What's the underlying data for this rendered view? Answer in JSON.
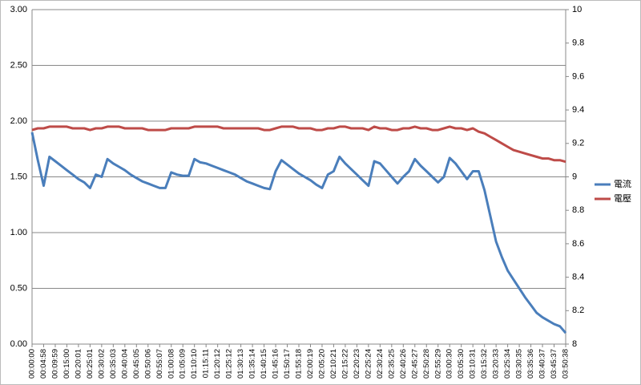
{
  "chart_data": {
    "type": "line",
    "categories": [
      "00:00:00",
      null,
      "00:04:58",
      null,
      "00:09:59",
      null,
      "00:15:00",
      null,
      "00:20:01",
      null,
      "00:25:01",
      null,
      "00:30:02",
      null,
      "00:35:03",
      null,
      "00:40:04",
      null,
      "00:45:05",
      null,
      "00:50:06",
      null,
      "00:55:07",
      null,
      "01:00:08",
      null,
      "01:05:09",
      null,
      "01:10:10",
      null,
      "01:15:11",
      null,
      "01:20:12",
      null,
      "01:25:12",
      null,
      "01:30:13",
      null,
      "01:35:14",
      null,
      "01:40:15",
      null,
      "01:45:16",
      null,
      "01:50:17",
      null,
      "01:55:18",
      null,
      "02:00:19",
      null,
      "02:05:20",
      null,
      "02:10:21",
      null,
      "02:15:22",
      null,
      "02:20:23",
      null,
      "02:25:24",
      null,
      "02:30:24",
      null,
      "02:35:25",
      null,
      "02:40:26",
      null,
      "02:45:27",
      null,
      "02:50:28",
      null,
      "02:55:29",
      null,
      "03:00:30",
      null,
      "03:05:30",
      null,
      "03:10:31",
      null,
      "03:15:32",
      null,
      "03:20:33",
      null,
      "03:25:34",
      null,
      "03:30:35",
      null,
      "03:35:36",
      null,
      "03:40:37",
      null,
      "03:45:37",
      null,
      "03:50:38"
    ],
    "series": [
      {
        "name": "電流",
        "color": "#4a7ebb",
        "values": [
          1.9,
          1.65,
          1.42,
          1.68,
          1.64,
          1.6,
          1.56,
          1.52,
          1.48,
          1.45,
          1.4,
          1.52,
          1.5,
          1.66,
          1.62,
          1.59,
          1.56,
          1.52,
          1.49,
          1.46,
          1.44,
          1.42,
          1.4,
          1.4,
          1.54,
          1.52,
          1.51,
          1.51,
          1.66,
          1.63,
          1.62,
          1.6,
          1.58,
          1.56,
          1.54,
          1.52,
          1.49,
          1.46,
          1.44,
          1.42,
          1.4,
          1.39,
          1.55,
          1.65,
          1.61,
          1.57,
          1.53,
          1.5,
          1.47,
          1.43,
          1.4,
          1.52,
          1.55,
          1.68,
          1.62,
          1.57,
          1.52,
          1.47,
          1.42,
          1.64,
          1.62,
          1.56,
          1.5,
          1.44,
          1.5,
          1.55,
          1.66,
          1.6,
          1.55,
          1.5,
          1.45,
          1.5,
          1.67,
          1.62,
          1.55,
          1.48,
          1.55,
          1.55,
          1.38,
          1.15,
          0.92,
          0.78,
          0.66,
          0.58,
          0.5,
          0.42,
          0.35,
          0.28,
          0.24,
          0.21,
          0.18,
          0.16,
          0.1
        ]
      },
      {
        "name": "電壓",
        "color": "#be4b48",
        "axis": "y2",
        "values": [
          9.28,
          9.29,
          9.29,
          9.3,
          9.3,
          9.3,
          9.3,
          9.29,
          9.29,
          9.29,
          9.28,
          9.29,
          9.29,
          9.3,
          9.3,
          9.3,
          9.29,
          9.29,
          9.29,
          9.29,
          9.28,
          9.28,
          9.28,
          9.28,
          9.29,
          9.29,
          9.29,
          9.29,
          9.3,
          9.3,
          9.3,
          9.3,
          9.3,
          9.29,
          9.29,
          9.29,
          9.29,
          9.29,
          9.29,
          9.29,
          9.28,
          9.28,
          9.29,
          9.3,
          9.3,
          9.3,
          9.29,
          9.29,
          9.29,
          9.28,
          9.28,
          9.29,
          9.29,
          9.3,
          9.3,
          9.29,
          9.29,
          9.29,
          9.28,
          9.3,
          9.29,
          9.29,
          9.28,
          9.28,
          9.29,
          9.29,
          9.3,
          9.29,
          9.29,
          9.28,
          9.28,
          9.29,
          9.3,
          9.29,
          9.29,
          9.28,
          9.29,
          9.27,
          9.26,
          9.24,
          9.22,
          9.2,
          9.18,
          9.16,
          9.15,
          9.14,
          9.13,
          9.12,
          9.11,
          9.11,
          9.1,
          9.1,
          9.09
        ]
      }
    ],
    "ylim": [
      0,
      3
    ],
    "yticks": [
      {
        "value": 0,
        "label": "0.00"
      },
      {
        "value": 0.5,
        "label": "0.50"
      },
      {
        "value": 1,
        "label": "1.00"
      },
      {
        "value": 1.5,
        "label": "1.50"
      },
      {
        "value": 2,
        "label": "2.00"
      },
      {
        "value": 2.5,
        "label": "2.50"
      },
      {
        "value": 3,
        "label": "3.00"
      }
    ],
    "y2lim": [
      8,
      10
    ],
    "y2ticks": [
      8,
      8.2,
      8.4,
      8.6,
      8.8,
      9,
      9.2,
      9.4,
      9.6,
      9.8,
      10
    ],
    "grid": true,
    "legend": "right"
  }
}
